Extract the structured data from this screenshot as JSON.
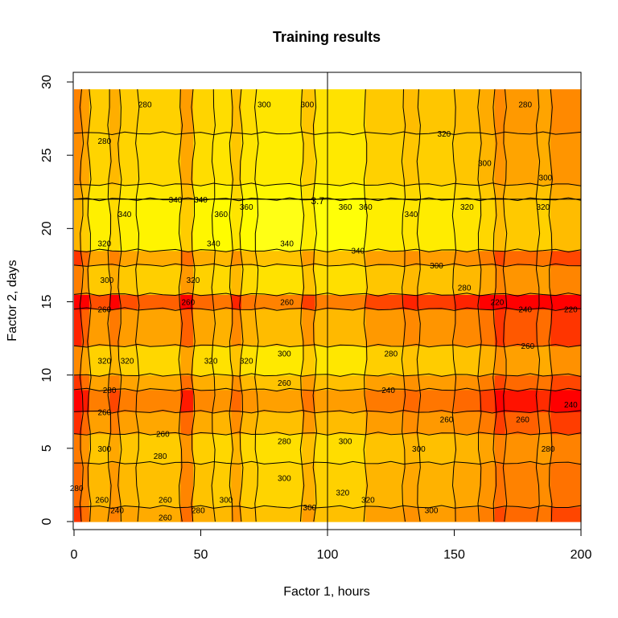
{
  "chart_data": {
    "type": "heatmap",
    "title": "Training results",
    "xlabel": "Factor 1, hours",
    "ylabel": "Factor 2, days",
    "xlim": [
      0,
      200
    ],
    "ylim": [
      0,
      30
    ],
    "x_ticks": [
      "0",
      "50",
      "100",
      "150",
      "200"
    ],
    "y_ticks": [
      "0",
      "5",
      "10",
      "15",
      "20",
      "25",
      "30"
    ],
    "grid": false,
    "color_scale": [
      "#ff0000",
      "#ff6a00",
      "#ff9a00",
      "#ffc400",
      "#ffe600",
      "#ffff00",
      "#ffffa0"
    ],
    "x_regions": [
      {
        "x0": 0,
        "x1": 3,
        "value": 258
      },
      {
        "x0": 3,
        "x1": 6,
        "value": 272
      },
      {
        "x0": 6,
        "x1": 14,
        "value": 300
      },
      {
        "x0": 14,
        "x1": 18,
        "value": 282
      },
      {
        "x0": 18,
        "x1": 25,
        "value": 300
      },
      {
        "x0": 25,
        "x1": 42,
        "value": 304
      },
      {
        "x0": 42,
        "x1": 47,
        "value": 272
      },
      {
        "x0": 47,
        "x1": 55,
        "value": 306
      },
      {
        "x0": 55,
        "x1": 62,
        "value": 312
      },
      {
        "x0": 62,
        "x1": 66,
        "value": 290
      },
      {
        "x0": 66,
        "x1": 72,
        "value": 312
      },
      {
        "x0": 72,
        "x1": 90,
        "value": 318
      },
      {
        "x0": 90,
        "x1": 95,
        "value": 296
      },
      {
        "x0": 95,
        "x1": 115,
        "value": 316
      },
      {
        "x0": 115,
        "x1": 130,
        "value": 298
      },
      {
        "x0": 130,
        "x1": 136,
        "value": 290
      },
      {
        "x0": 136,
        "x1": 150,
        "value": 296
      },
      {
        "x0": 150,
        "x1": 160,
        "value": 290
      },
      {
        "x0": 160,
        "x1": 166,
        "value": 280
      },
      {
        "x0": 166,
        "x1": 170,
        "value": 262
      },
      {
        "x0": 170,
        "x1": 183,
        "value": 270
      },
      {
        "x0": 183,
        "x1": 188,
        "value": 276
      },
      {
        "x0": 188,
        "x1": 200,
        "value": 262
      }
    ],
    "y_regions": [
      {
        "y0": 0,
        "y1": 1,
        "value": 270
      },
      {
        "y0": 1,
        "y1": 4,
        "value": 282
      },
      {
        "y0": 4,
        "y1": 6,
        "value": 290
      },
      {
        "y0": 6,
        "y1": 7.5,
        "value": 268
      },
      {
        "y0": 7.5,
        "y1": 9,
        "value": 250
      },
      {
        "y0": 9,
        "y1": 10,
        "value": 270
      },
      {
        "y0": 10,
        "y1": 12,
        "value": 298
      },
      {
        "y0": 12,
        "y1": 14.5,
        "value": 266
      },
      {
        "y0": 14.5,
        "y1": 15.5,
        "value": 234
      },
      {
        "y0": 15.5,
        "y1": 17.5,
        "value": 292
      },
      {
        "y0": 17.5,
        "y1": 18.5,
        "value": 270
      },
      {
        "y0": 18.5,
        "y1": 22,
        "value": 322
      },
      {
        "y0": 22,
        "y1": 23,
        "value": 312
      },
      {
        "y0": 23,
        "y1": 26.5,
        "value": 300
      },
      {
        "y0": 26.5,
        "y1": 29.5,
        "value": 294
      }
    ],
    "contour_levels": [
      220,
      240,
      260,
      280,
      300,
      320,
      340,
      360
    ],
    "contour_labels": [
      {
        "text": "320",
        "x": 146,
        "y": 26.5
      },
      {
        "text": "300",
        "x": 162,
        "y": 24.5
      },
      {
        "text": "300",
        "x": 186,
        "y": 23.5
      },
      {
        "text": "280",
        "x": 178,
        "y": 28.5
      },
      {
        "text": "280",
        "x": 28,
        "y": 28.5
      },
      {
        "text": "280",
        "x": 12,
        "y": 26
      },
      {
        "text": "300",
        "x": 75,
        "y": 28.5
      },
      {
        "text": "300",
        "x": 92,
        "y": 28.5
      },
      {
        "text": "340",
        "x": 20,
        "y": 21
      },
      {
        "text": "340",
        "x": 40,
        "y": 22
      },
      {
        "text": "340",
        "x": 50,
        "y": 22
      },
      {
        "text": "360",
        "x": 58,
        "y": 21
      },
      {
        "text": "360",
        "x": 68,
        "y": 21.5
      },
      {
        "text": "360",
        "x": 107,
        "y": 21.5
      },
      {
        "text": "360",
        "x": 115,
        "y": 21.5
      },
      {
        "text": "340",
        "x": 133,
        "y": 21
      },
      {
        "text": "320",
        "x": 155,
        "y": 21.5
      },
      {
        "text": "320",
        "x": 185,
        "y": 21.5
      },
      {
        "text": "320",
        "x": 12,
        "y": 19
      },
      {
        "text": "340",
        "x": 55,
        "y": 19
      },
      {
        "text": "340",
        "x": 84,
        "y": 19
      },
      {
        "text": "340",
        "x": 112,
        "y": 18.5
      },
      {
        "text": "300",
        "x": 143,
        "y": 17.5
      },
      {
        "text": "300",
        "x": 13,
        "y": 16.5
      },
      {
        "text": "320",
        "x": 47,
        "y": 16.5
      },
      {
        "text": "280",
        "x": 154,
        "y": 16
      },
      {
        "text": "260",
        "x": 12,
        "y": 14.5
      },
      {
        "text": "260",
        "x": 45,
        "y": 15
      },
      {
        "text": "260",
        "x": 84,
        "y": 15
      },
      {
        "text": "220",
        "x": 167,
        "y": 15
      },
      {
        "text": "240",
        "x": 178,
        "y": 14.5
      },
      {
        "text": "220",
        "x": 196,
        "y": 14.5
      },
      {
        "text": "320",
        "x": 12,
        "y": 11
      },
      {
        "text": "320",
        "x": 21,
        "y": 11
      },
      {
        "text": "320",
        "x": 54,
        "y": 11
      },
      {
        "text": "320",
        "x": 68,
        "y": 11
      },
      {
        "text": "300",
        "x": 83,
        "y": 11.5
      },
      {
        "text": "280",
        "x": 125,
        "y": 11.5
      },
      {
        "text": "260",
        "x": 179,
        "y": 12
      },
      {
        "text": "280",
        "x": 14,
        "y": 9
      },
      {
        "text": "260",
        "x": 83,
        "y": 9.5
      },
      {
        "text": "240",
        "x": 124,
        "y": 9
      },
      {
        "text": "240",
        "x": 196,
        "y": 8
      },
      {
        "text": "260",
        "x": 12,
        "y": 7.5
      },
      {
        "text": "260",
        "x": 35,
        "y": 6
      },
      {
        "text": "260",
        "x": 147,
        "y": 7
      },
      {
        "text": "260",
        "x": 177,
        "y": 7
      },
      {
        "text": "300",
        "x": 12,
        "y": 5
      },
      {
        "text": "280",
        "x": 34,
        "y": 4.5
      },
      {
        "text": "280",
        "x": 187,
        "y": 5
      },
      {
        "text": "280",
        "x": 83,
        "y": 5.5
      },
      {
        "text": "300",
        "x": 107,
        "y": 5.5
      },
      {
        "text": "300",
        "x": 136,
        "y": 5
      },
      {
        "text": "300",
        "x": 83,
        "y": 3
      },
      {
        "text": "320",
        "x": 106,
        "y": 2
      },
      {
        "text": "320",
        "x": 116,
        "y": 1.5
      },
      {
        "text": "300",
        "x": 60,
        "y": 1.5
      },
      {
        "text": "300",
        "x": 93,
        "y": 1
      },
      {
        "text": "300",
        "x": 141,
        "y": 0.8
      },
      {
        "text": "280",
        "x": 1,
        "y": 2.3
      },
      {
        "text": "260",
        "x": 11,
        "y": 1.5
      },
      {
        "text": "240",
        "x": 17,
        "y": 0.8
      },
      {
        "text": "260",
        "x": 36,
        "y": 1.5
      },
      {
        "text": "260",
        "x": 36,
        "y": 0.3
      },
      {
        "text": "280",
        "x": 49,
        "y": 0.8
      }
    ],
    "crosshair": {
      "x": 100,
      "y": 22,
      "label": "3.7"
    }
  }
}
